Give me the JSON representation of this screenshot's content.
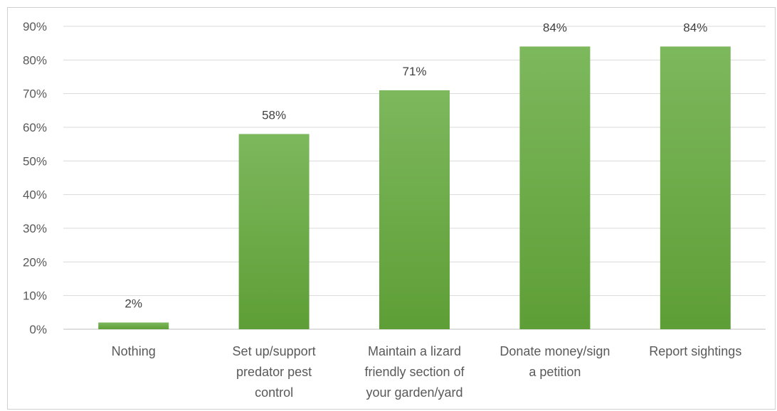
{
  "chart_data": {
    "type": "bar",
    "categories": [
      [
        "Nothing"
      ],
      [
        "Set up/support",
        "predator pest",
        "control"
      ],
      [
        "Maintain a lizard",
        "friendly section of",
        "your garden/yard"
      ],
      [
        "Donate money/sign",
        "a petition"
      ],
      [
        "Report sightings"
      ]
    ],
    "values": [
      2,
      58,
      71,
      84,
      84
    ],
    "value_labels": [
      "2%",
      "58%",
      "71%",
      "84%",
      "84%"
    ],
    "ylim": [
      0,
      90
    ],
    "yticks": [
      0,
      10,
      20,
      30,
      40,
      50,
      60,
      70,
      80,
      90
    ],
    "ytick_labels": [
      "0%",
      "10%",
      "20%",
      "30%",
      "40%",
      "50%",
      "60%",
      "70%",
      "80%",
      "90%"
    ],
    "grid": true,
    "colors": {
      "bar_top": "#7db85d",
      "bar_bottom": "#5e9e36",
      "grid": "#d9d9d9",
      "axis": "#bfbfbf"
    }
  }
}
